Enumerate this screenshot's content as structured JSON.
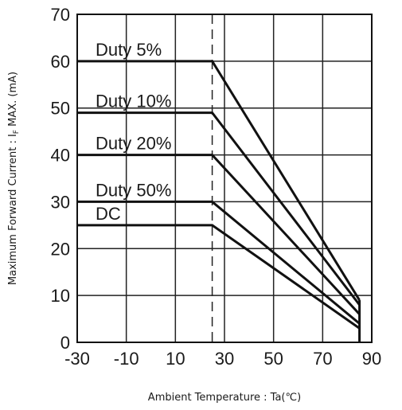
{
  "chart_data": {
    "type": "line",
    "xlabel": "Ambient Temperature : Ta(℃)",
    "ylabel_main": "Maximum Forward Current : I",
    "ylabel_sub": "F",
    "ylabel_tail": " MAX. (mA)",
    "xlim": [
      -30,
      90
    ],
    "ylim": [
      0,
      70
    ],
    "x_ticks": [
      -30,
      -10,
      10,
      30,
      50,
      70,
      90
    ],
    "y_ticks": [
      0,
      10,
      20,
      30,
      40,
      50,
      60,
      70
    ],
    "x_tick_labels": [
      "-30",
      "-10",
      "10",
      "30",
      "50",
      "70",
      "90"
    ],
    "y_tick_labels": [
      "0",
      "10",
      "20",
      "30",
      "40",
      "50",
      "60",
      "70"
    ],
    "grid": true,
    "reference_line_x": 25,
    "series": [
      {
        "name": "Duty 5%",
        "x": [
          -30,
          25,
          85
        ],
        "y": [
          60,
          60,
          9
        ]
      },
      {
        "name": "Duty 10%",
        "x": [
          -30,
          25,
          85
        ],
        "y": [
          49,
          49,
          8
        ]
      },
      {
        "name": "Duty 20%",
        "x": [
          -30,
          25,
          85
        ],
        "y": [
          40,
          40,
          6
        ]
      },
      {
        "name": "Duty 50%",
        "x": [
          -30,
          25,
          85
        ],
        "y": [
          30,
          30,
          4
        ]
      },
      {
        "name": "DC",
        "x": [
          -30,
          25,
          85
        ],
        "y": [
          25,
          25,
          3
        ]
      }
    ]
  }
}
